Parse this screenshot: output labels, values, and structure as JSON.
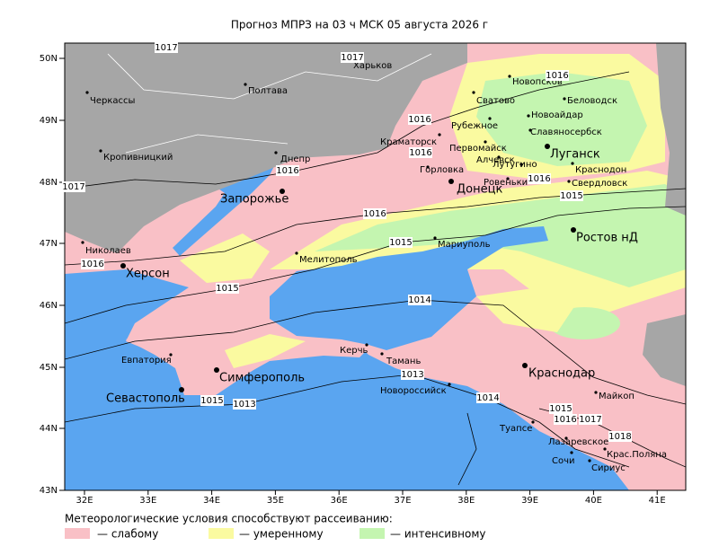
{
  "title": "Прогноз МПРЗ на 03 ч МСК 05 августа 2026 г",
  "lat_ticks": [
    "50N",
    "49N",
    "48N",
    "47N",
    "46N",
    "45N",
    "44N",
    "43N"
  ],
  "lon_ticks": [
    "32E",
    "33E",
    "34E",
    "35E",
    "36E",
    "37E",
    "38E",
    "39E",
    "40E",
    "41E"
  ],
  "cities": [
    {
      "name": "Черкассы",
      "major": false
    },
    {
      "name": "Полтава",
      "major": false
    },
    {
      "name": "Харьков",
      "major": false
    },
    {
      "name": "Кропивницкий",
      "major": false
    },
    {
      "name": "Днепр",
      "major": false
    },
    {
      "name": "Запорожье",
      "major": true
    },
    {
      "name": "Николаев",
      "major": false
    },
    {
      "name": "Херсон",
      "major": true
    },
    {
      "name": "Мелитополь",
      "major": false
    },
    {
      "name": "Мариуполь",
      "major": false
    },
    {
      "name": "Донецк",
      "major": true
    },
    {
      "name": "Горловка",
      "major": false
    },
    {
      "name": "Краматорск",
      "major": false
    },
    {
      "name": "Сватово",
      "major": false
    },
    {
      "name": "Новопсков",
      "major": false
    },
    {
      "name": "Беловодск",
      "major": false
    },
    {
      "name": "Новоайдар",
      "major": false
    },
    {
      "name": "Рубежное",
      "major": false
    },
    {
      "name": "Славяносербск",
      "major": false
    },
    {
      "name": "Первомайск",
      "major": false
    },
    {
      "name": "Луганск",
      "major": true
    },
    {
      "name": "Алчевск",
      "major": false
    },
    {
      "name": "Лутугино",
      "major": false
    },
    {
      "name": "Краснодон",
      "major": false
    },
    {
      "name": "Ровеньки",
      "major": false
    },
    {
      "name": "Свердловск",
      "major": false
    },
    {
      "name": "Ростов нД",
      "major": true
    },
    {
      "name": "Евпатория",
      "major": false
    },
    {
      "name": "Симферополь",
      "major": true
    },
    {
      "name": "Севастополь",
      "major": true
    },
    {
      "name": "Керчь",
      "major": false
    },
    {
      "name": "Тамань",
      "major": false
    },
    {
      "name": "Новороссийск",
      "major": false
    },
    {
      "name": "Краснодар",
      "major": true
    },
    {
      "name": "Майкоп",
      "major": false
    },
    {
      "name": "Туапсе",
      "major": false
    },
    {
      "name": "Лазаревское",
      "major": false
    },
    {
      "name": "Сочи",
      "major": false
    },
    {
      "name": "Крас.Поляна",
      "major": false
    },
    {
      "name": "Сириус",
      "major": false
    }
  ],
  "isobar_labels": [
    1017,
    1017,
    1016,
    1016,
    1016,
    1016,
    1016,
    1016,
    1017,
    1016,
    1015,
    1015,
    1015,
    1014,
    1013,
    1013,
    1015,
    1014,
    1015,
    1016,
    1017,
    1018
  ],
  "legend": {
    "heading": "Метеорологические условия способствуют рассеиванию:",
    "items": [
      {
        "label": "— слабому",
        "color": "#f9c0c6"
      },
      {
        "label": "— умеренному",
        "color": "#fafaa0"
      },
      {
        "label": "— интенсивному",
        "color": "#c4f5b0"
      }
    ]
  }
}
